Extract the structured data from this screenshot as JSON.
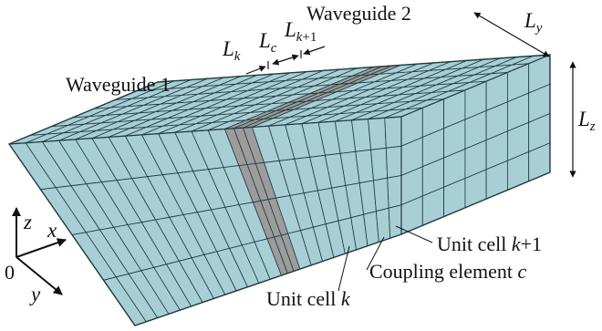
{
  "colors": {
    "waveguide_fill": "#a9cfd6",
    "coupling_fill": "#9c9c9c",
    "edge": "#1e3a40",
    "text": "#111111"
  },
  "labels": {
    "waveguide1": "Waveguide 1",
    "waveguide2": "Waveguide 2",
    "L": "L",
    "sub_k": "k",
    "sub_c": "c",
    "sub_k1_k": "k",
    "sub_k1_plus": "+1",
    "sub_y": "y",
    "sub_z": "z",
    "axis_z": "z",
    "axis_x": "x",
    "axis_y": "y",
    "origin": "0",
    "unit_cell_k1_text": "Unit cell ",
    "unit_cell_k1_k": "k",
    "unit_cell_k1_plus": "+1",
    "coupling_text": "Coupling element ",
    "coupling_c": "c",
    "unit_cell_k_text": "Unit cell ",
    "unit_cell_k_k": "k"
  },
  "structure": {
    "waveguide1_cells": 13,
    "coupling_cells": 3,
    "waveguide2_cells": 9,
    "cells_y": 7,
    "cells_z": 4
  }
}
